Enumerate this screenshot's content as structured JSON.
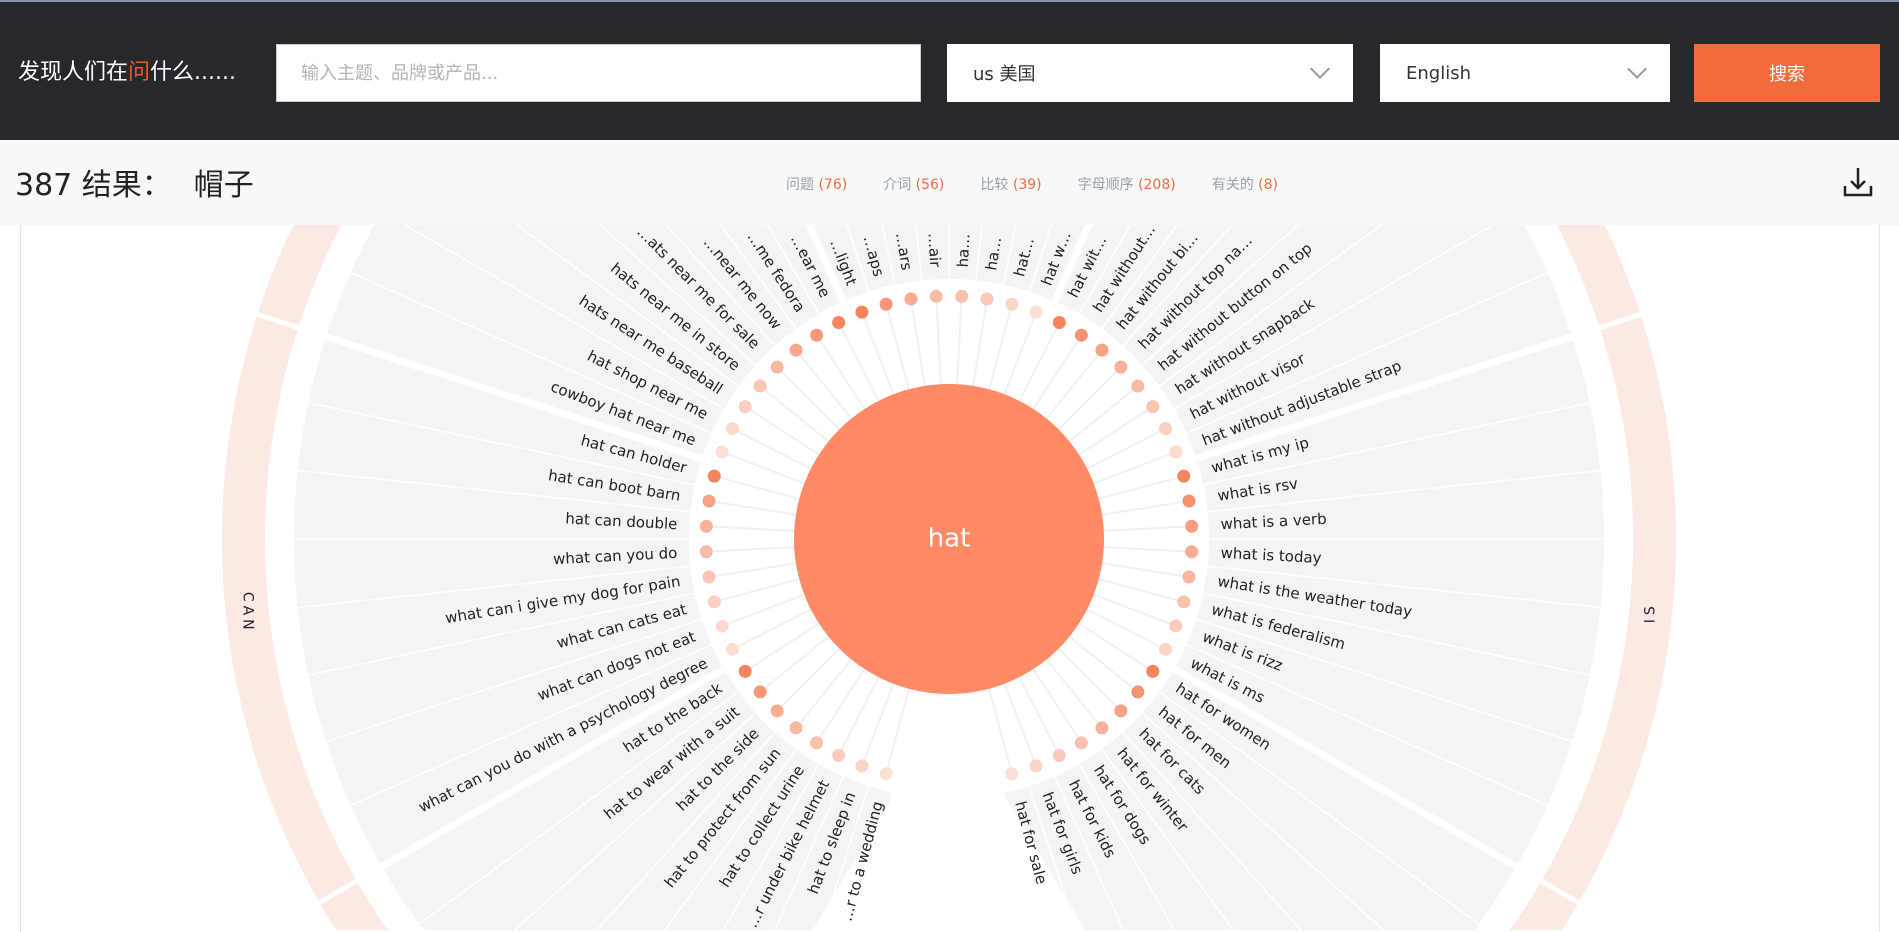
{
  "header": {
    "brand_pre": "发现人们在",
    "brand_hl": "问",
    "brand_post": "什么......",
    "search_placeholder": "输入主题、品牌或产品...",
    "search_value": "",
    "country": "us 美国",
    "language": "English",
    "search_button": "搜索"
  },
  "results": {
    "count_label": "387 结果：",
    "keyword": "帽子",
    "tabs": [
      {
        "label": "问题",
        "count": "(76)"
      },
      {
        "label": "介词",
        "count": "(56)"
      },
      {
        "label": "比较",
        "count": "(39)"
      },
      {
        "label": "字母顺序",
        "count": "(208)"
      },
      {
        "label": "有关的",
        "count": "(8)"
      }
    ],
    "download_icon": "download-icon"
  },
  "wheel": {
    "center": "hat",
    "colors": {
      "accent": "#f26b3a",
      "center": "#ff8a65",
      "dot_dark": "#f5845f",
      "dot_light": "#fde8e2",
      "sector": "#f4f4f4",
      "ring": "#fde9e4"
    },
    "groups": [
      {
        "key": "to",
        "ring_label": "",
        "items": [
          "…r to a wedding",
          "hat to sleep in",
          "…r under bike helmet",
          "hat to collect urine",
          "hat to protect from sun",
          "hat to the side",
          "hat to wear with a suit",
          "hat to the back"
        ],
        "dot_levels": [
          0.1,
          0.2,
          0.3,
          0.4,
          0.5,
          0.6,
          0.8,
          1
        ]
      },
      {
        "key": "can",
        "ring_label": "CAN",
        "items": [
          "what can you do with a psychology degree",
          "what can dogs not eat",
          "what can cats eat",
          "what can i give my dog for pain",
          "what can you do",
          "hat can double",
          "hat can boot barn",
          "hat can holder"
        ],
        "dot_levels": [
          0.1,
          0.15,
          0.25,
          0.35,
          0.45,
          0.55,
          0.7,
          1
        ]
      },
      {
        "key": "near",
        "ring_label": "",
        "items": [
          "cowboy hat near me",
          "hat shop near me",
          "hats near me baseball",
          "hats near me in store",
          "…ats near me for sale",
          "…near me now",
          "…me fedora",
          "…ear me"
        ],
        "dot_levels": [
          0.1,
          0.15,
          0.25,
          0.35,
          0.5,
          0.65,
          0.8,
          1
        ]
      },
      {
        "key": "with",
        "ring_label": "",
        "items": [
          "…light",
          "…aps",
          "…ars",
          "…air",
          "ha…",
          "ha…",
          "hat…",
          "hat w…"
        ],
        "dot_levels": [
          1,
          0.8,
          0.6,
          0.45,
          0.4,
          0.3,
          0.2,
          0.1
        ]
      },
      {
        "key": "without",
        "ring_label": "",
        "items": [
          "hat wit…",
          "hat without…",
          "hat without bi…",
          "hat without top na…",
          "hat without button on top",
          "hat without snapback",
          "hat without visor",
          "hat without adjustable strap"
        ],
        "dot_levels": [
          1,
          0.85,
          0.7,
          0.55,
          0.45,
          0.35,
          0.25,
          0.15
        ]
      },
      {
        "key": "is",
        "ring_label": "IS",
        "items": [
          "what is my ip",
          "what is rsv",
          "what is a verb",
          "what is today",
          "what is the weather today",
          "what is federalism",
          "what is rizz",
          "what is ms"
        ],
        "dot_levels": [
          1,
          0.85,
          0.75,
          0.6,
          0.5,
          0.4,
          0.3,
          0.2
        ]
      },
      {
        "key": "for",
        "ring_label": "",
        "items": [
          "hat for women",
          "hat for men",
          "hat for cats",
          "hat for winter",
          "hat for dogs",
          "hat for kids",
          "hat for girls",
          "hat for sale"
        ],
        "dot_levels": [
          1,
          0.85,
          0.7,
          0.55,
          0.4,
          0.3,
          0.2,
          0.1
        ]
      }
    ]
  }
}
